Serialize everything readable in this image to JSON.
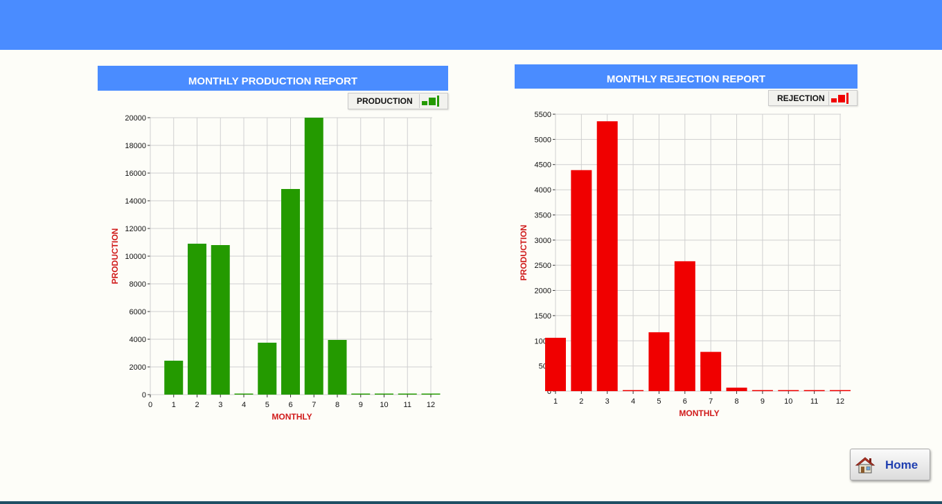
{
  "page": {
    "header_title": ""
  },
  "home_button": {
    "label": "Home"
  },
  "chart_data": [
    {
      "type": "bar",
      "title": "MONTHLY PRODUCTION REPORT",
      "xlabel": "MONTHLY",
      "ylabel": "PRODUCTION",
      "legend": "PRODUCTION",
      "legend_position": "top-right",
      "color": "#249a00",
      "x": [
        1,
        2,
        3,
        4,
        5,
        6,
        7,
        8,
        9,
        10,
        11,
        12
      ],
      "values": [
        2450,
        10900,
        10800,
        0,
        3750,
        14850,
        20000,
        3950,
        0,
        0,
        0,
        0
      ],
      "xlim": [
        0,
        12
      ],
      "ylim": [
        0,
        20000
      ],
      "xticks": [
        0,
        1,
        2,
        3,
        4,
        5,
        6,
        7,
        8,
        9,
        10,
        11,
        12
      ],
      "yticks": [
        0,
        2000,
        4000,
        6000,
        8000,
        10000,
        12000,
        14000,
        16000,
        18000,
        20000
      ],
      "grid": true
    },
    {
      "type": "bar",
      "title": "MONTHLY REJECTION REPORT",
      "xlabel": "MONTHLY",
      "ylabel": "PRODUCTION",
      "legend": "REJECTION",
      "legend_position": "top-right",
      "color": "#f00000",
      "x": [
        1,
        2,
        3,
        4,
        5,
        6,
        7,
        8,
        9,
        10,
        11,
        12
      ],
      "values": [
        1060,
        4390,
        5360,
        0,
        1170,
        2580,
        780,
        70,
        0,
        0,
        0,
        0
      ],
      "xlim": [
        1,
        12
      ],
      "ylim": [
        0,
        5500
      ],
      "xticks": [
        1,
        2,
        3,
        4,
        5,
        6,
        7,
        8,
        9,
        10,
        11,
        12
      ],
      "yticks": [
        0,
        500,
        1000,
        1500,
        2000,
        2500,
        3000,
        3500,
        4000,
        4500,
        5000,
        5500
      ],
      "grid": true
    }
  ]
}
